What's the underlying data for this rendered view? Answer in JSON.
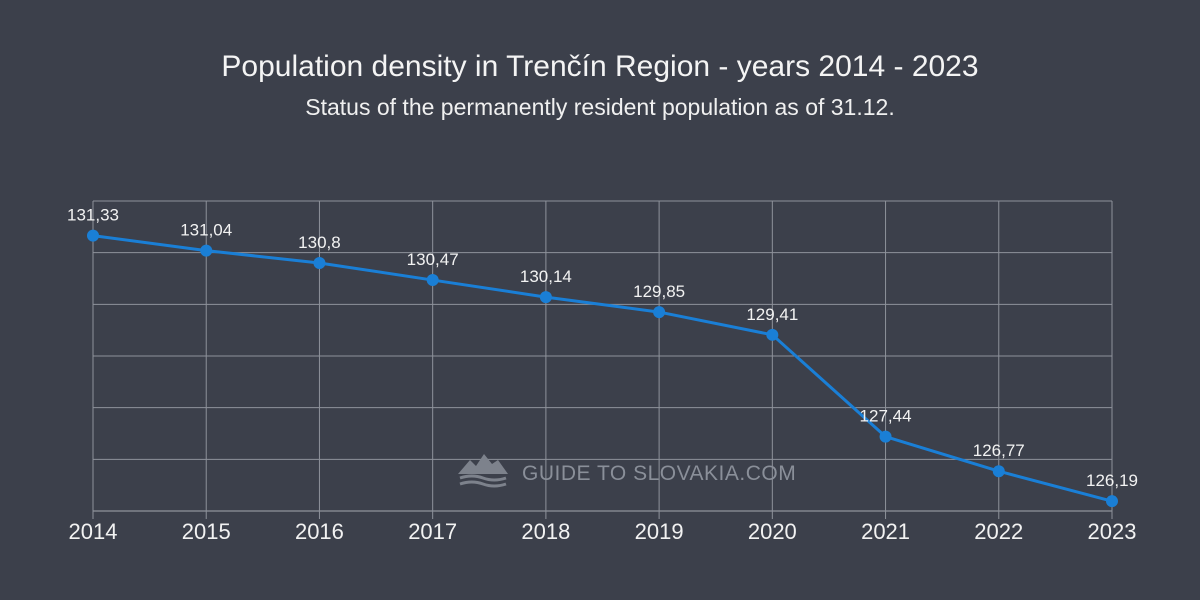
{
  "colors": {
    "background": "#3c404b",
    "grid": "#8e929b",
    "line": "#1a7fd6",
    "text": "#f2f2f2",
    "watermark": "#8a8f99"
  },
  "chart_data": {
    "type": "line",
    "title": "Population density in Trenčín Region - years 2014 - 2023",
    "subtitle": "Status of the permanently resident population as of 31.12.",
    "categories": [
      "2014",
      "2015",
      "2016",
      "2017",
      "2018",
      "2019",
      "2020",
      "2021",
      "2022",
      "2023"
    ],
    "values": [
      131.33,
      131.04,
      130.8,
      130.47,
      130.14,
      129.85,
      129.41,
      127.44,
      126.77,
      126.19
    ],
    "data_labels": [
      "131,33",
      "131,04",
      "130,8",
      "130,47",
      "130,14",
      "129,85",
      "129,41",
      "127,44",
      "126,77",
      "126,19"
    ],
    "xlabel": "",
    "ylabel": "",
    "ylim": [
      126,
      132
    ],
    "grid": true,
    "legend": "none"
  },
  "watermark": {
    "text": "GUIDE TO SLOVAKIA.COM",
    "icon": "mountain-logo-icon"
  }
}
